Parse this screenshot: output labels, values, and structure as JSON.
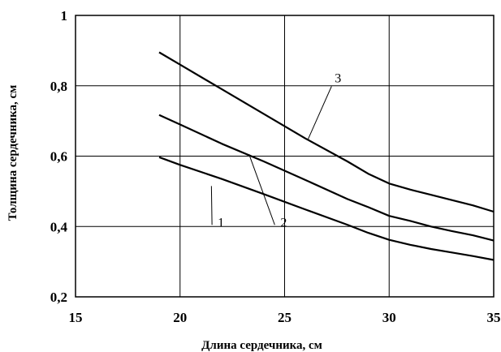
{
  "chart_data": {
    "type": "line",
    "xlabel": "Длина сердечника, см",
    "ylabel": "Толщина сердечника, см",
    "xlim": [
      15,
      35
    ],
    "ylim": [
      0.2,
      1.0
    ],
    "x_ticks": [
      "15",
      "20",
      "25",
      "30",
      "35"
    ],
    "y_ticks": [
      "0,2",
      "0,4",
      "0,6",
      "0,8",
      "1"
    ],
    "grid": true,
    "series": [
      {
        "name": "1",
        "x": [
          19,
          20,
          22,
          24,
          26,
          28,
          29,
          30,
          31,
          32,
          33,
          34,
          35
        ],
        "y": [
          0.597,
          0.575,
          0.535,
          0.492,
          0.448,
          0.405,
          0.382,
          0.362,
          0.348,
          0.336,
          0.326,
          0.316,
          0.305
        ]
      },
      {
        "name": "2",
        "x": [
          19,
          20,
          22,
          24,
          26,
          28,
          29,
          30,
          31,
          32,
          33,
          34,
          35
        ],
        "y": [
          0.717,
          0.69,
          0.635,
          0.585,
          0.532,
          0.478,
          0.455,
          0.43,
          0.416,
          0.4,
          0.387,
          0.375,
          0.36
        ]
      },
      {
        "name": "3",
        "x": [
          19,
          20,
          22,
          24,
          26,
          28,
          29,
          30,
          31,
          32,
          33,
          34,
          35
        ],
        "y": [
          0.895,
          0.86,
          0.79,
          0.72,
          0.65,
          0.585,
          0.55,
          0.522,
          0.505,
          0.49,
          0.475,
          0.46,
          0.442
        ]
      }
    ],
    "curve_labels": [
      {
        "text": "1",
        "series": "1",
        "label_x": 21.8,
        "label_y": 0.4,
        "pointer_x": 21.5,
        "pointer_y": 0.515
      },
      {
        "text": "2",
        "series": "2",
        "label_x": 24.8,
        "label_y": 0.4,
        "pointer_x": 23.3,
        "pointer_y": 0.605
      },
      {
        "text": "3",
        "series": "3",
        "label_x": 27.4,
        "label_y": 0.81,
        "pointer_x": 26.1,
        "pointer_y": 0.645
      }
    ],
    "colors": {
      "line": "#000000",
      "grid": "#000000",
      "background": "#ffffff"
    }
  }
}
